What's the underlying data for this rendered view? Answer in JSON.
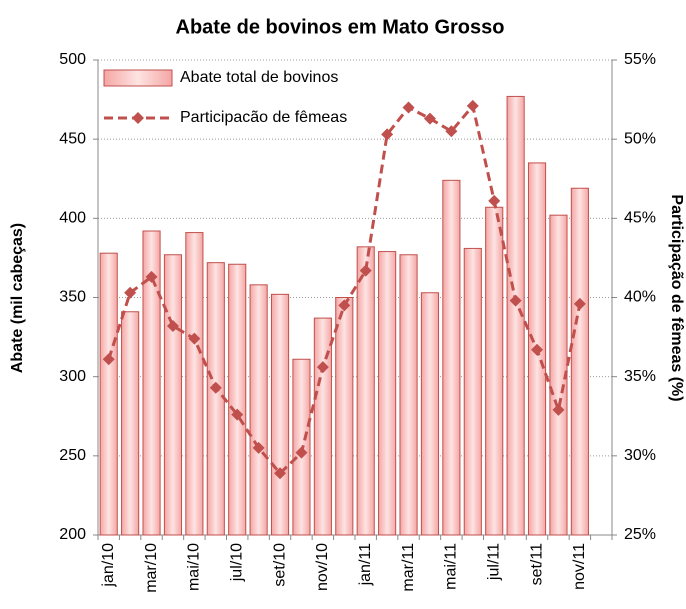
{
  "chart_data": {
    "type": "bar_line",
    "title": "Abate de bovinos em Mato Grosso",
    "y_label": "Abate (mil cabeças)",
    "y2_label": "Participação de fêmeas (%)",
    "categories": [
      "jan/10",
      null,
      "mar/10",
      null,
      "mai/10",
      null,
      "jul/10",
      null,
      "set/10",
      null,
      "nov/10",
      null,
      "jan/11",
      null,
      "mar/11",
      null,
      "mai/11",
      null,
      "jul/11",
      null,
      "set/11",
      null,
      "nov/11",
      null
    ],
    "series": [
      {
        "name": "Abate total de bovinos",
        "type": "bar",
        "color": "#c0504d",
        "values": [
          378,
          341,
          392,
          377,
          391,
          372,
          371,
          358,
          352,
          311,
          337,
          350,
          382,
          379,
          377,
          353,
          424,
          381,
          407,
          477,
          435,
          402,
          419,
          null
        ]
      },
      {
        "name": "Participacão de fêmeas",
        "type": "line",
        "axis": "y2",
        "color": "#c0504d",
        "values": [
          36.1,
          40.3,
          41.3,
          38.2,
          37.4,
          34.3,
          32.6,
          30.5,
          28.9,
          30.2,
          35.6,
          39.5,
          41.7,
          50.3,
          52.0,
          51.3,
          50.5,
          52.1,
          46.1,
          39.8,
          36.7,
          32.9,
          39.6,
          null
        ]
      }
    ],
    "ylim": [
      200,
      500
    ],
    "yticks": [
      200,
      250,
      300,
      350,
      400,
      450,
      500
    ],
    "y2lim": [
      25,
      55
    ],
    "y2ticks": [
      {
        "value": 25,
        "label": "25%"
      },
      {
        "value": 30,
        "label": "30%"
      },
      {
        "value": 35,
        "label": "35%"
      },
      {
        "value": 40,
        "label": "40%"
      },
      {
        "value": 45,
        "label": "45%"
      },
      {
        "value": 50,
        "label": "50%"
      },
      {
        "value": 55,
        "label": "55%"
      }
    ],
    "grid": true,
    "legend": "upper-left"
  }
}
